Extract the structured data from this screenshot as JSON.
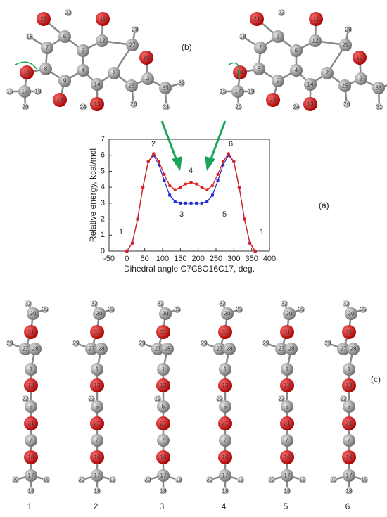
{
  "figure_labels": {
    "a": "(a)",
    "b": "(b)",
    "c": "(c)"
  },
  "chart_data": {
    "type": "line",
    "x_label": "Dihedral angle C7C8O16C17, deg.",
    "y_label": "Relative energy, kcal/mol",
    "x": [
      0,
      15,
      30,
      45,
      60,
      75,
      90,
      105,
      120,
      135,
      150,
      165,
      180,
      195,
      210,
      225,
      240,
      255,
      270,
      285,
      300,
      315,
      330,
      345,
      360
    ],
    "series": [
      {
        "name": "blue",
        "color": "#1f2fd0",
        "values": [
          0,
          0.5,
          2.0,
          4.0,
          5.6,
          6.0,
          5.4,
          4.4,
          3.5,
          3.1,
          3.0,
          3.0,
          3.0,
          3.0,
          3.0,
          3.1,
          3.5,
          4.4,
          5.4,
          6.0,
          5.6,
          4.0,
          2.0,
          0.5,
          0
        ]
      },
      {
        "name": "red",
        "color": "#e0201c",
        "values": [
          0,
          0.5,
          2.0,
          4.0,
          5.6,
          6.1,
          5.6,
          4.8,
          4.1,
          3.85,
          4.0,
          4.2,
          4.3,
          4.2,
          4.0,
          3.85,
          4.1,
          4.8,
          5.6,
          6.1,
          5.6,
          4.0,
          2.0,
          0.5,
          0
        ]
      }
    ],
    "annotations": [
      "1",
      "2",
      "3",
      "4",
      "5",
      "6",
      "1"
    ],
    "xlim": [
      -50,
      400
    ],
    "xticks": [
      -50,
      0,
      50,
      100,
      150,
      200,
      250,
      300,
      350,
      400
    ],
    "ylim": [
      0,
      7
    ],
    "yticks": [
      0,
      1,
      2,
      3,
      4,
      5,
      6,
      7
    ]
  },
  "top_molecules": [
    {
      "atoms": [
        "21",
        "22",
        "11",
        "6",
        "12",
        "18",
        "28",
        "27",
        "7",
        "5",
        "2",
        "10",
        "8",
        "4",
        "9",
        "14",
        "3",
        "25",
        "16",
        "17",
        "15",
        "19",
        "20",
        "23",
        "13",
        "24",
        "26",
        "33",
        "32",
        "31"
      ]
    },
    {
      "atoms": [
        "21",
        "22",
        "11",
        "6",
        "12",
        "18",
        "28",
        "29",
        "7",
        "5",
        "2",
        "10",
        "8",
        "4",
        "9",
        "14",
        "3",
        "25",
        "16",
        "17",
        "15",
        "19",
        "20",
        "23",
        "13",
        "24",
        "26",
        "33",
        "32",
        "31"
      ]
    }
  ],
  "conformers": [
    {
      "label": "1",
      "atoms": [
        "32",
        "30",
        "35",
        "31",
        "29",
        "27",
        "28",
        "1",
        "13",
        "22",
        "5",
        "21",
        "7",
        "16",
        "17",
        "20",
        "19",
        "18"
      ]
    },
    {
      "label": "2",
      "atoms": [
        "32",
        "30",
        "35",
        "31",
        "29",
        "27",
        "28",
        "1",
        "13",
        "22",
        "5",
        "21",
        "7",
        "16",
        "17",
        "20",
        "19",
        "18"
      ]
    },
    {
      "label": "3",
      "atoms": [
        "32",
        "30",
        "35",
        "31",
        "29",
        "27",
        "28",
        "1",
        "13",
        "22",
        "5",
        "21",
        "7",
        "16",
        "17",
        "20",
        "19",
        "18"
      ]
    },
    {
      "label": "4",
      "atoms": [
        "32",
        "30",
        "35",
        "31",
        "29",
        "27",
        "28",
        "1",
        "13",
        "22",
        "5",
        "21",
        "7",
        "16",
        "17",
        "20",
        "19",
        "18"
      ]
    },
    {
      "label": "5",
      "atoms": [
        "32",
        "30",
        "35",
        "31",
        "29",
        "27",
        "28",
        "1",
        "13",
        "22",
        "5",
        "21",
        "7",
        "16",
        "17",
        "20",
        "19",
        "18"
      ]
    },
    {
      "label": "6",
      "atoms": [
        "32",
        "30",
        "35",
        "31",
        "29",
        "27",
        "28",
        "1",
        "13",
        "22",
        "5",
        "21",
        "7",
        "16",
        "17",
        "20",
        "19",
        "18"
      ]
    }
  ]
}
